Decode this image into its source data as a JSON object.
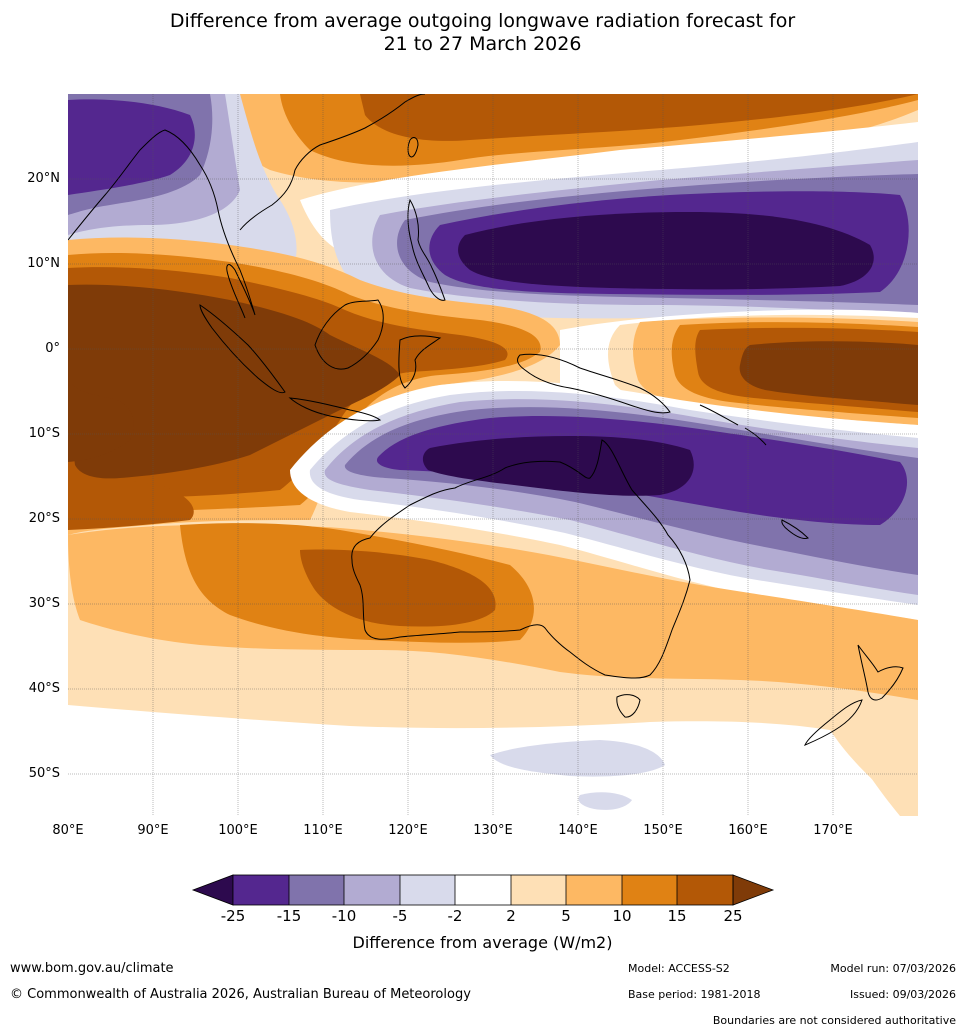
{
  "title": {
    "line1": "Difference from average outgoing longwave radiation forecast for",
    "line2": "21 to 27 March 2026"
  },
  "map": {
    "latitude_labels": [
      "20°N",
      "10°N",
      "0°",
      "10°S",
      "20°S",
      "30°S",
      "40°S",
      "50°S"
    ],
    "longitude_labels": [
      "80°E",
      "90°E",
      "100°E",
      "110°E",
      "120°E",
      "130°E",
      "140°E",
      "150°E",
      "160°E",
      "170°E"
    ],
    "extent": {
      "lon": [
        80,
        180
      ],
      "lat": [
        -55,
        30
      ]
    }
  },
  "legend": {
    "tick_labels": [
      "-25",
      "-15",
      "-10",
      "-5",
      "-2",
      "2",
      "5",
      "10",
      "15",
      "25"
    ],
    "bins": [
      {
        "range": "< -25",
        "color": "#2d0a4e"
      },
      {
        "range": "-25 to -15",
        "color": "#54278f"
      },
      {
        "range": "-15 to -10",
        "color": "#8073ac"
      },
      {
        "range": "-10 to -5",
        "color": "#b2abd2"
      },
      {
        "range": "-5 to -2",
        "color": "#d8daeb"
      },
      {
        "range": "-2 to 2",
        "color": "#ffffff"
      },
      {
        "range": "2 to 5",
        "color": "#fee0b6"
      },
      {
        "range": "5 to 10",
        "color": "#fdb863"
      },
      {
        "range": "10 to 15",
        "color": "#e08214"
      },
      {
        "range": "15 to 25",
        "color": "#b35806"
      },
      {
        "range": "> 25",
        "color": "#7f3b08"
      }
    ],
    "label": "Difference from average (W/m2)"
  },
  "footer": {
    "website": "www.bom.gov.au/climate",
    "copyright": "© Commonwealth of Australia 2026, Australian Bureau of Meteorology",
    "model": "Model: ACCESS-S2",
    "base_period": "Base period: 1981-2018",
    "model_run": "Model run: 07/03/2026",
    "issued": "Issued: 09/03/2026",
    "disclaimer": "Boundaries are not considered authoritative"
  }
}
